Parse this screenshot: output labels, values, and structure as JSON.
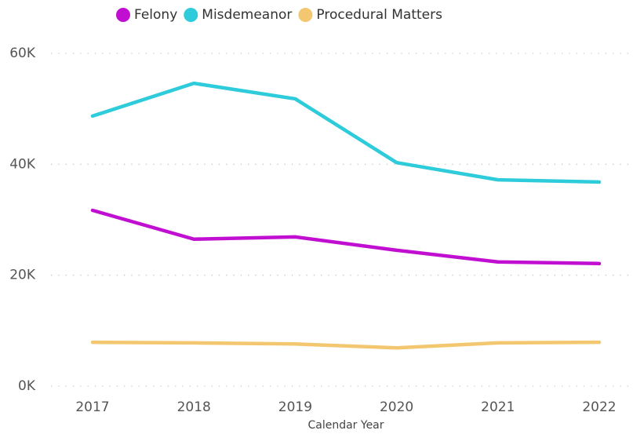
{
  "chart_data": {
    "type": "line",
    "categories": [
      "2017",
      "2018",
      "2019",
      "2020",
      "2021",
      "2022"
    ],
    "x_label": "Calendar Year",
    "series": [
      {
        "name": "Felony",
        "color": "#c10fd2",
        "values": [
          31.7,
          26.5,
          26.9,
          24.5,
          22.4,
          22.1
        ]
      },
      {
        "name": "Misdemeanor",
        "color": "#2ecbdb",
        "values": [
          48.7,
          54.6,
          51.8,
          40.3,
          37.2,
          36.8
        ]
      },
      {
        "name": "Procedural Matters",
        "color": "#f3c76f",
        "values": [
          7.9,
          7.8,
          7.6,
          6.9,
          7.8,
          7.9
        ]
      }
    ],
    "ylim": [
      0,
      60
    ],
    "yticks": [
      {
        "value": 0,
        "label": "0K"
      },
      {
        "value": 20,
        "label": "20K"
      },
      {
        "value": 40,
        "label": "40K"
      },
      {
        "value": 60,
        "label": "60K"
      }
    ],
    "grid": true,
    "legend": "top"
  }
}
